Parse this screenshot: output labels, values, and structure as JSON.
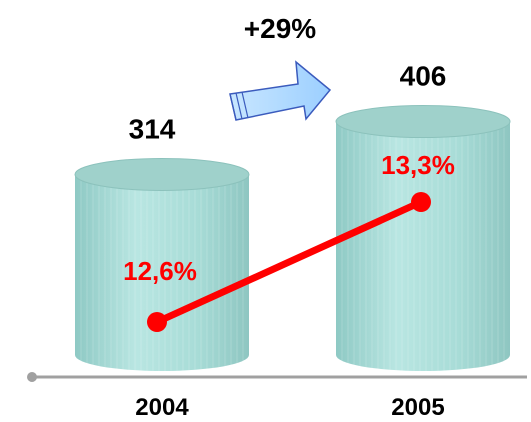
{
  "chart_data": {
    "type": "bar",
    "categories": [
      "2004",
      "2005"
    ],
    "series": [
      {
        "values": [
          314,
          406
        ],
        "labels": [
          "314",
          "406"
        ]
      },
      {
        "values": [
          12.6,
          13.3
        ],
        "labels": [
          "12,6%",
          "13,3%"
        ],
        "color": "#ff0000"
      }
    ],
    "annotation": "+29%",
    "grid": false,
    "colors": {
      "bar_body": "#a6dcd8",
      "bar_top": "#9fd1cb",
      "arrow": "#b7dcff",
      "line": "#ff0000",
      "axis": "#a0a0a0"
    }
  }
}
